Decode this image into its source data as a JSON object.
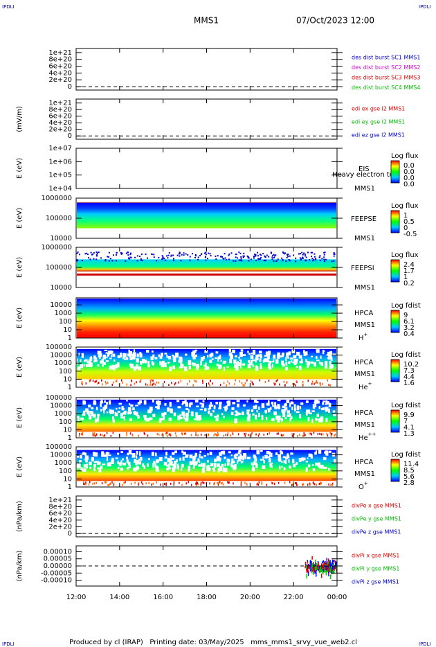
{
  "header": {
    "logo_left": "IPDLI",
    "logo_right": "IPDLI",
    "spacecraft": "MMS1",
    "date": "07/Oct/2023 12:00"
  },
  "footer": {
    "text": "Produced by cl (IRAP)   Printing date: 03/May/2025   mms_mms1_srvy_vue_web2.cl",
    "logo_left": "IPDLI",
    "logo_right": "IPDLI"
  },
  "chart_data": [
    {
      "type": "line",
      "ylim": [
        -1e+20,
        1.12e+21
      ],
      "yticks": [
        {
          "value": 1e+21,
          "label": "1e+21"
        },
        {
          "value": 8e+20,
          "label": "8e+20"
        },
        {
          "value": 6e+20,
          "label": "6e+20"
        },
        {
          "value": 4e+20,
          "label": "4e+20"
        },
        {
          "value": 2e+20,
          "label": "2e+20"
        },
        0
      ],
      "series": [
        {
          "name": "des dist burst SC1 MMS1",
          "color": "#0000cc"
        },
        {
          "name": "des dist burst SC2 MMS2",
          "color": "#cc00cc"
        },
        {
          "name": "des dist burst SC3 MMS3",
          "color": "#dd0000"
        },
        {
          "name": "des dist burst SC4 MMS4",
          "color": "#00bb00"
        }
      ]
    },
    {
      "type": "line",
      "ylabel": "(mV/m)",
      "ylim": [
        -1e+20,
        1.12e+21
      ],
      "yticks": [
        {
          "value": 1e+21,
          "label": "1e+21"
        },
        {
          "value": 8e+20,
          "label": "8e+20"
        },
        {
          "value": 6e+20,
          "label": "6e+20"
        },
        {
          "value": 4e+20,
          "label": "4e+20"
        },
        {
          "value": 2e+20,
          "label": "2e+20"
        },
        0
      ],
      "series": [
        {
          "name": "edi ex gse l2 MMS1",
          "color": "#dd0000"
        },
        {
          "name": "edi ey gse l2 MMS1",
          "color": "#00bb00"
        },
        {
          "name": "edi ez gse l2 MMS1",
          "color": "#0000cc"
        }
      ]
    },
    {
      "type": "spectrogram",
      "ylabel": "E (eV)",
      "log": true,
      "ylim": [
        10000,
        10000000
      ],
      "yticks": [
        {
          "value": 10000000,
          "label": "1e+07"
        },
        {
          "value": 1000000,
          "label": "1e+06"
        },
        {
          "value": 100000,
          "label": "1e+05"
        },
        {
          "value": 10000,
          "label": "1e+04"
        }
      ],
      "instrument": "EIS",
      "spacecraft": "MMS1",
      "note": "Heavy electron to",
      "colorbar": {
        "title": "Log flux",
        "ticks": [
          "0.0",
          "0.0",
          "0.0",
          "0.0"
        ]
      }
    },
    {
      "type": "spectrogram",
      "ylabel": "E (eV)",
      "log": true,
      "ylim": [
        10000,
        1000000
      ],
      "yticks": [
        1000000,
        100000,
        10000
      ],
      "instrument": "FEEPSE",
      "spacecraft": "MMS1",
      "colorbar": {
        "title": "Log flux",
        "ticks": [
          1.0,
          0.5,
          0.0,
          -0.5
        ]
      }
    },
    {
      "type": "spectrogram",
      "ylabel": "E (eV)",
      "log": true,
      "ylim": [
        10000,
        1000000
      ],
      "yticks": [
        1000000,
        100000,
        10000
      ],
      "instrument": "FEEPSI",
      "spacecraft": "MMS1",
      "colorbar": {
        "title": "Log flux",
        "ticks": [
          2.4,
          1.7,
          1.0,
          0.2
        ]
      }
    },
    {
      "type": "spectrogram",
      "ylabel": "E (eV)",
      "log": true,
      "ylim": [
        1,
        70000
      ],
      "yticks": [
        10000,
        1000,
        100,
        10,
        1
      ],
      "instrument": "HPCA",
      "spacecraft": "MMS1",
      "species": {
        "base": "H",
        "sup": "+"
      },
      "colorbar": {
        "title": "Log fdist",
        "ticks": [
          9.0,
          6.1,
          3.2,
          0.4
        ]
      }
    },
    {
      "type": "spectrogram",
      "ylabel": "E (eV)",
      "log": true,
      "ylim": [
        1,
        100000
      ],
      "yticks": [
        100000,
        10000,
        1000,
        100,
        10,
        1
      ],
      "instrument": "HPCA",
      "spacecraft": "MMS1",
      "species": {
        "base": "He",
        "sup": "+"
      },
      "colorbar": {
        "title": "Log fdist",
        "ticks": [
          10.2,
          7.3,
          4.4,
          1.6
        ]
      }
    },
    {
      "type": "spectrogram",
      "ylabel": "E (eV)",
      "log": true,
      "ylim": [
        1,
        100000
      ],
      "yticks": [
        100000,
        10000,
        1000,
        100,
        10,
        1
      ],
      "instrument": "HPCA",
      "spacecraft": "MMS1",
      "species": {
        "base": "He",
        "sup": "++"
      },
      "colorbar": {
        "title": "Log fdist",
        "ticks": [
          9.9,
          7.0,
          4.1,
          1.3
        ]
      }
    },
    {
      "type": "spectrogram",
      "ylabel": "E (eV)",
      "log": true,
      "ylim": [
        1,
        100000
      ],
      "yticks": [
        100000,
        10000,
        1000,
        100,
        10,
        1
      ],
      "instrument": "HPCA",
      "spacecraft": "MMS1",
      "species": {
        "base": "O",
        "sup": "+"
      },
      "colorbar": {
        "title": "Log fdist",
        "ticks": [
          11.4,
          8.5,
          5.6,
          2.8
        ]
      }
    },
    {
      "type": "line",
      "ylabel": "(nPa/km)",
      "ylim": [
        -1e+20,
        1.12e+21
      ],
      "yticks": [
        {
          "value": 1e+21,
          "label": "1e+21"
        },
        {
          "value": 8e+20,
          "label": "8e+20"
        },
        {
          "value": 6e+20,
          "label": "6e+20"
        },
        {
          "value": 4e+20,
          "label": "4e+20"
        },
        {
          "value": 2e+20,
          "label": "2e+20"
        },
        0
      ],
      "series": [
        {
          "name": "divPe x gse MMS1",
          "color": "#dd0000"
        },
        {
          "name": "divPe y gse MMS1",
          "color": "#00bb00"
        },
        {
          "name": "divPe z gse MMS1",
          "color": "#0000cc"
        }
      ]
    },
    {
      "type": "line",
      "ylabel": "(nPa/km)",
      "ylim": [
        -0.000141,
        0.000141
      ],
      "yticks": [
        {
          "value": 0.0001,
          "label": "0.00010"
        },
        {
          "value": 5e-05,
          "label": "0.00005"
        },
        {
          "value": 0,
          "label": "0.00000"
        },
        {
          "value": -5e-05,
          "label": "-0.00005"
        },
        {
          "value": -0.0001,
          "label": "-0.00010"
        }
      ],
      "series": [
        {
          "name": "divPi x gse MMS1",
          "color": "#dd0000"
        },
        {
          "name": "divPi y gse MMS1",
          "color": "#00bb00"
        },
        {
          "name": "divPi z gse MMS1",
          "color": "#0000cc"
        }
      ],
      "xlim": [
        12,
        24
      ],
      "xticks": [
        {
          "value": 12,
          "label": "12:00"
        },
        {
          "value": 14,
          "label": "14:00"
        },
        {
          "value": 16,
          "label": "16:00"
        },
        {
          "value": 18,
          "label": "18:00"
        },
        {
          "value": 20,
          "label": "20:00"
        },
        {
          "value": 22,
          "label": "22:00"
        },
        {
          "value": 24,
          "label": "00:00"
        }
      ]
    }
  ]
}
